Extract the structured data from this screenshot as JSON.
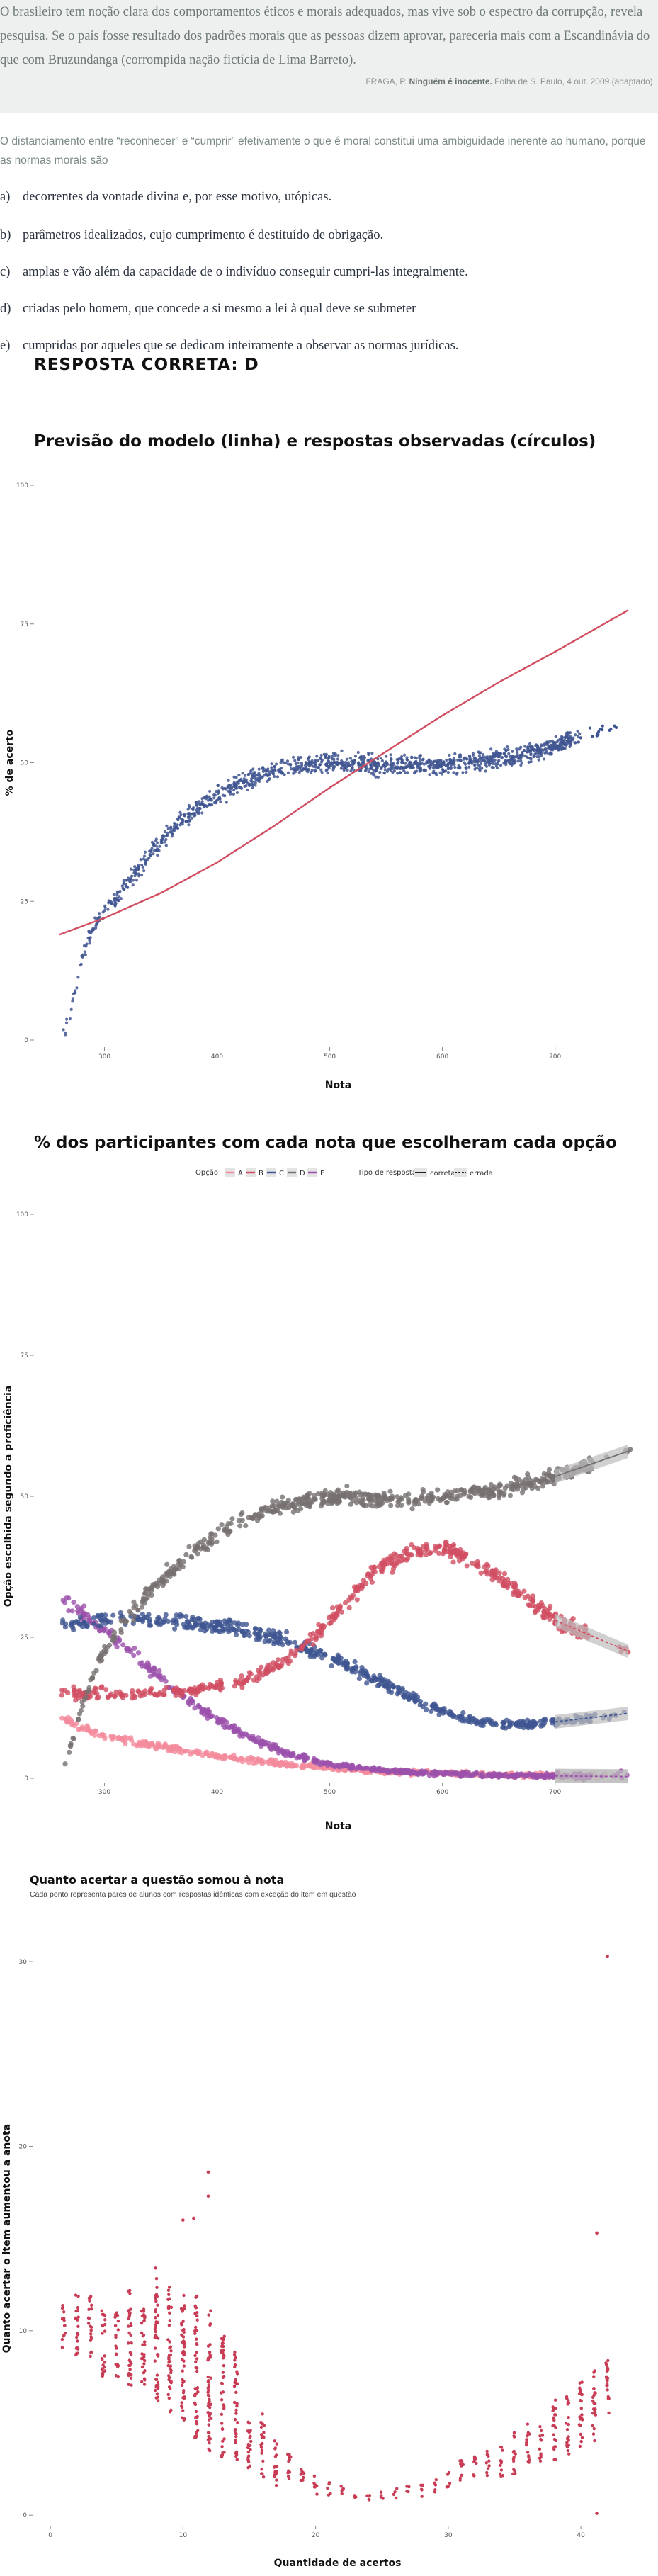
{
  "quote": {
    "text": "O brasileiro tem noção clara dos comportamentos éticos e morais adequados, mas vive sob o espectro da corrupção, revela pesquisa. Se o país fosse resultado dos padrões morais que as pessoas dizem aprovar, pareceria mais com a Escandinávia do que com Bruzundanga (corrompida nação fictícia de Lima Barreto).",
    "citation_author": "FRAGA, P.",
    "citation_title": "Ninguém é inocente.",
    "citation_source": "Folha de S. Paulo, 4 out. 2009 (adaptado)."
  },
  "intro": "O distanciamento entre “reconhecer” e “cumprir” efetivamente o que é moral constitui uma ambiguidade inerente ao humano, porque as normas morais são",
  "options": [
    {
      "letter": "a)",
      "text": "decorrentes da vontade divina e, por esse motivo, utópicas."
    },
    {
      "letter": "b)",
      "text": "parâmetros idealizados, cujo cumprimento é destituído de obrigação."
    },
    {
      "letter": "c)",
      "text": "amplas e vão além da capacidade de o indivíduo conseguir cumpri-las integralmente."
    },
    {
      "letter": "d)",
      "text": "criadas pelo homem, que concede a si mesmo a lei à qual deve se submeter"
    },
    {
      "letter": "e)",
      "text": "cumpridas por aqueles que se dedicam inteiramente a observar as normas jurídicas."
    }
  ],
  "answer": "RESPOSTA CORRETA: D",
  "colors": {
    "blue": "#3f5591",
    "red": "#d14e61",
    "pink": "#f48b9c",
    "purple": "#9b51ab",
    "gray": "#777070",
    "crimson": "#c83c55"
  },
  "chart_data": [
    {
      "type": "scatter",
      "title": "Previsão do modelo (linha) e respostas observadas (círculos)",
      "xlabel": "Nota",
      "ylabel": "% de acerto",
      "x_ticks": [
        "300",
        "400",
        "500",
        "600",
        "700"
      ],
      "y_ticks": [
        "0",
        "25",
        "50",
        "75",
        "100"
      ],
      "xlim": [
        245,
        770
      ],
      "ylim": [
        0,
        100
      ],
      "grid": false,
      "model_line": {
        "x": [
          260,
          300,
          350,
          400,
          450,
          500,
          550,
          600,
          650,
          700,
          765
        ],
        "y": [
          19,
          22,
          26.5,
          32,
          38.5,
          45.5,
          52,
          58.5,
          64.5,
          70,
          77.5
        ]
      },
      "observed_trend": {
        "x": [
          262,
          270,
          280,
          290,
          300,
          320,
          340,
          360,
          380,
          400,
          420,
          440,
          460,
          480,
          500,
          520,
          540,
          560,
          580,
          600,
          620,
          640,
          660,
          680,
          700,
          720,
          740,
          760
        ],
        "y": [
          0,
          5,
          15,
          20.5,
          23,
          28,
          33.5,
          38,
          41.5,
          44,
          46,
          48,
          49,
          49.5,
          50,
          50,
          49.5,
          49.5,
          49.5,
          49.5,
          50,
          50.5,
          51,
          52,
          53,
          54.5,
          55.5,
          57
        ]
      }
    },
    {
      "type": "scatter",
      "title": "% dos participantes com cada nota que escolheram cada opção",
      "xlabel": "Nota",
      "ylabel": "Opção escolhida segundo a proficiência",
      "x_ticks": [
        "300",
        "400",
        "500",
        "600",
        "700"
      ],
      "y_ticks": [
        "0",
        "25",
        "50",
        "75",
        "100"
      ],
      "xlim": [
        245,
        770
      ],
      "ylim": [
        0,
        100
      ],
      "legend": {
        "option_title": "Opção",
        "options": [
          "A",
          "B",
          "C",
          "D",
          "E"
        ],
        "type_title": "Tipo de resposta",
        "types": [
          "correta",
          "errada"
        ],
        "placement": "top"
      },
      "series": [
        {
          "name": "A",
          "x": [
            262,
            280,
            300,
            340,
            380,
            420,
            460,
            500,
            540,
            580,
            620,
            660,
            700,
            765
          ],
          "y": [
            11,
            9,
            7.5,
            6,
            4.5,
            3.5,
            2.5,
            1.8,
            1.3,
            1,
            0.8,
            0.6,
            0.5,
            0.4
          ]
        },
        {
          "name": "B",
          "x": [
            262,
            300,
            340,
            380,
            420,
            460,
            480,
            500,
            520,
            540,
            560,
            580,
            600,
            620,
            640,
            660,
            700,
            765
          ],
          "y": [
            15,
            15,
            15,
            15.5,
            17,
            20.5,
            24,
            28,
            32.5,
            36.5,
            39,
            40.5,
            41,
            39.5,
            37,
            34,
            28,
            22.5
          ]
        },
        {
          "name": "C",
          "x": [
            262,
            300,
            340,
            380,
            420,
            460,
            500,
            540,
            580,
            620,
            660,
            700,
            765
          ],
          "y": [
            27,
            28,
            28,
            27.5,
            26.5,
            24.5,
            21.5,
            17.5,
            13.5,
            10.5,
            9.5,
            10,
            11.5
          ]
        },
        {
          "name": "D",
          "x": [
            262,
            280,
            300,
            340,
            380,
            420,
            460,
            500,
            540,
            580,
            620,
            660,
            700,
            765
          ],
          "y": [
            0,
            13,
            23,
            33,
            40.5,
            45.5,
            48.5,
            50,
            49.5,
            49.5,
            50.5,
            51.5,
            53.5,
            58
          ]
        },
        {
          "name": "E",
          "x": [
            262,
            300,
            340,
            380,
            420,
            460,
            500,
            540,
            580,
            620,
            660,
            700,
            765
          ],
          "y": [
            32,
            26,
            19.5,
            13,
            8,
            4.5,
            2.5,
            1.5,
            1,
            0.7,
            0.5,
            0.4,
            0.3
          ]
        }
      ]
    },
    {
      "type": "scatter",
      "title": "Quanto acertar a questão somou à nota",
      "subtitle": "Cada ponto representa pares de alunos com respostas idênticas com exceção do item em questão",
      "xlabel": "Quantidade de acertos",
      "ylabel": "Quanto acertar o item aumentou a anota",
      "x_ticks": [
        "0",
        "10",
        "20",
        "30",
        "40"
      ],
      "y_ticks": [
        "0",
        "10",
        "20",
        "30"
      ],
      "xlim": [
        -0.7,
        44
      ],
      "ylim": [
        -0.3,
        31.5
      ],
      "outliers": [
        {
          "x": 11.9,
          "y": 18.6
        },
        {
          "x": 42.0,
          "y": 30.3
        },
        {
          "x": 11.9,
          "y": 17.3
        },
        {
          "x": 10.8,
          "y": 16.1
        },
        {
          "x": 10.0,
          "y": 16.0
        },
        {
          "x": 41.2,
          "y": 15.3
        },
        {
          "x": 41.2,
          "y": 0.1
        }
      ],
      "columns": [
        {
          "x": 1,
          "min": 9.0,
          "max": 11.5
        },
        {
          "x": 2,
          "min": 8.5,
          "max": 12.0
        },
        {
          "x": 3,
          "min": 8.5,
          "max": 12.0
        },
        {
          "x": 4,
          "min": 7.5,
          "max": 11.5
        },
        {
          "x": 5,
          "min": 7.5,
          "max": 11.0
        },
        {
          "x": 6,
          "min": 7.0,
          "max": 12.5
        },
        {
          "x": 7,
          "min": 6.5,
          "max": 11.5
        },
        {
          "x": 8,
          "min": 6.0,
          "max": 13.5
        },
        {
          "x": 9,
          "min": 5.5,
          "max": 12.5
        },
        {
          "x": 10,
          "min": 4.5,
          "max": 12.0
        },
        {
          "x": 11,
          "min": 4.0,
          "max": 12.0
        },
        {
          "x": 12,
          "min": 3.5,
          "max": 11.5
        },
        {
          "x": 13,
          "min": 3.0,
          "max": 10.0
        },
        {
          "x": 14,
          "min": 3.0,
          "max": 9.0
        },
        {
          "x": 15,
          "min": 2.5,
          "max": 6.0
        },
        {
          "x": 16,
          "min": 2.0,
          "max": 5.5
        },
        {
          "x": 17,
          "min": 1.5,
          "max": 4.5
        },
        {
          "x": 18,
          "min": 1.5,
          "max": 3.5
        },
        {
          "x": 19,
          "min": 1.2,
          "max": 2.5
        },
        {
          "x": 20,
          "min": 1.0,
          "max": 2.2
        },
        {
          "x": 21,
          "min": 1.0,
          "max": 1.8
        },
        {
          "x": 22,
          "min": 0.8,
          "max": 1.6
        },
        {
          "x": 23,
          "min": 0.8,
          "max": 1.4
        },
        {
          "x": 24,
          "min": 0.8,
          "max": 1.4
        },
        {
          "x": 25,
          "min": 0.9,
          "max": 1.4
        },
        {
          "x": 26,
          "min": 0.9,
          "max": 1.5
        },
        {
          "x": 27,
          "min": 1.0,
          "max": 1.6
        },
        {
          "x": 28,
          "min": 1.0,
          "max": 1.8
        },
        {
          "x": 29,
          "min": 1.2,
          "max": 2.0
        },
        {
          "x": 30,
          "min": 1.4,
          "max": 2.4
        },
        {
          "x": 31,
          "min": 1.5,
          "max": 3.0
        },
        {
          "x": 32,
          "min": 1.8,
          "max": 3.2
        },
        {
          "x": 33,
          "min": 2.0,
          "max": 3.5
        },
        {
          "x": 34,
          "min": 2.0,
          "max": 3.8
        },
        {
          "x": 35,
          "min": 2.2,
          "max": 4.5
        },
        {
          "x": 36,
          "min": 2.5,
          "max": 5.0
        },
        {
          "x": 37,
          "min": 2.8,
          "max": 5.0
        },
        {
          "x": 38,
          "min": 3.0,
          "max": 6.5
        },
        {
          "x": 39,
          "min": 3.0,
          "max": 6.5
        },
        {
          "x": 40,
          "min": 3.5,
          "max": 7.5
        },
        {
          "x": 41,
          "min": 4.0,
          "max": 8.0
        },
        {
          "x": 42,
          "min": 5.5,
          "max": 9.0
        }
      ]
    }
  ]
}
